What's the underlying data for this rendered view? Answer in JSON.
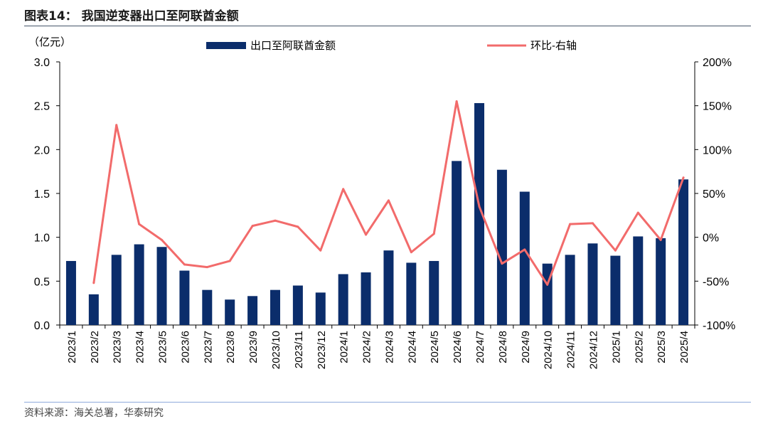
{
  "header": {
    "title": "图表14：  我国逆变器出口至阿联酋金额"
  },
  "footer": {
    "source": "资料来源：海关总署，华泰研究"
  },
  "chart_data": {
    "type": "bar",
    "left_axis_unit": "（亿元）",
    "categories": [
      "2023/1",
      "2023/2",
      "2023/3",
      "2023/4",
      "2023/5",
      "2023/6",
      "2023/7",
      "2023/8",
      "2023/9",
      "2023/10",
      "2023/11",
      "2023/12",
      "2024/1",
      "2024/2",
      "2024/3",
      "2024/4",
      "2024/5",
      "2024/6",
      "2024/7",
      "2024/8",
      "2024/9",
      "2024/10",
      "2024/11",
      "2024/12",
      "2025/1",
      "2025/2",
      "2025/3",
      "2025/4"
    ],
    "series": [
      {
        "name": "出口至阿联酋金额",
        "type": "bar",
        "axis": "left",
        "color": "#0b2d6b",
        "values": [
          0.73,
          0.35,
          0.8,
          0.92,
          0.89,
          0.62,
          0.4,
          0.29,
          0.33,
          0.4,
          0.45,
          0.37,
          0.58,
          0.6,
          0.85,
          0.71,
          0.73,
          1.87,
          2.53,
          1.77,
          1.52,
          0.7,
          0.8,
          0.93,
          0.79,
          1.01,
          0.99,
          1.66
        ]
      },
      {
        "name": "环比-右轴",
        "type": "line",
        "axis": "right",
        "color": "#f26b6b",
        "values": [
          null,
          -52,
          128,
          15,
          -3,
          -31,
          -34,
          -27,
          13,
          19,
          12,
          -15,
          55,
          3,
          42,
          -17,
          4,
          155,
          35,
          -30,
          -14,
          -54,
          15,
          16,
          -15,
          28,
          -3,
          68
        ]
      }
    ],
    "ylim_left": [
      0,
      3.0
    ],
    "yticks_left": [
      "0.0",
      "0.5",
      "1.0",
      "1.5",
      "2.0",
      "2.5",
      "3.0"
    ],
    "ylim_right": [
      -100,
      200
    ],
    "yticks_right": [
      "-100%",
      "-50%",
      "0%",
      "50%",
      "100%",
      "150%",
      "200%"
    ],
    "grid": false,
    "legend_placement": "top"
  }
}
